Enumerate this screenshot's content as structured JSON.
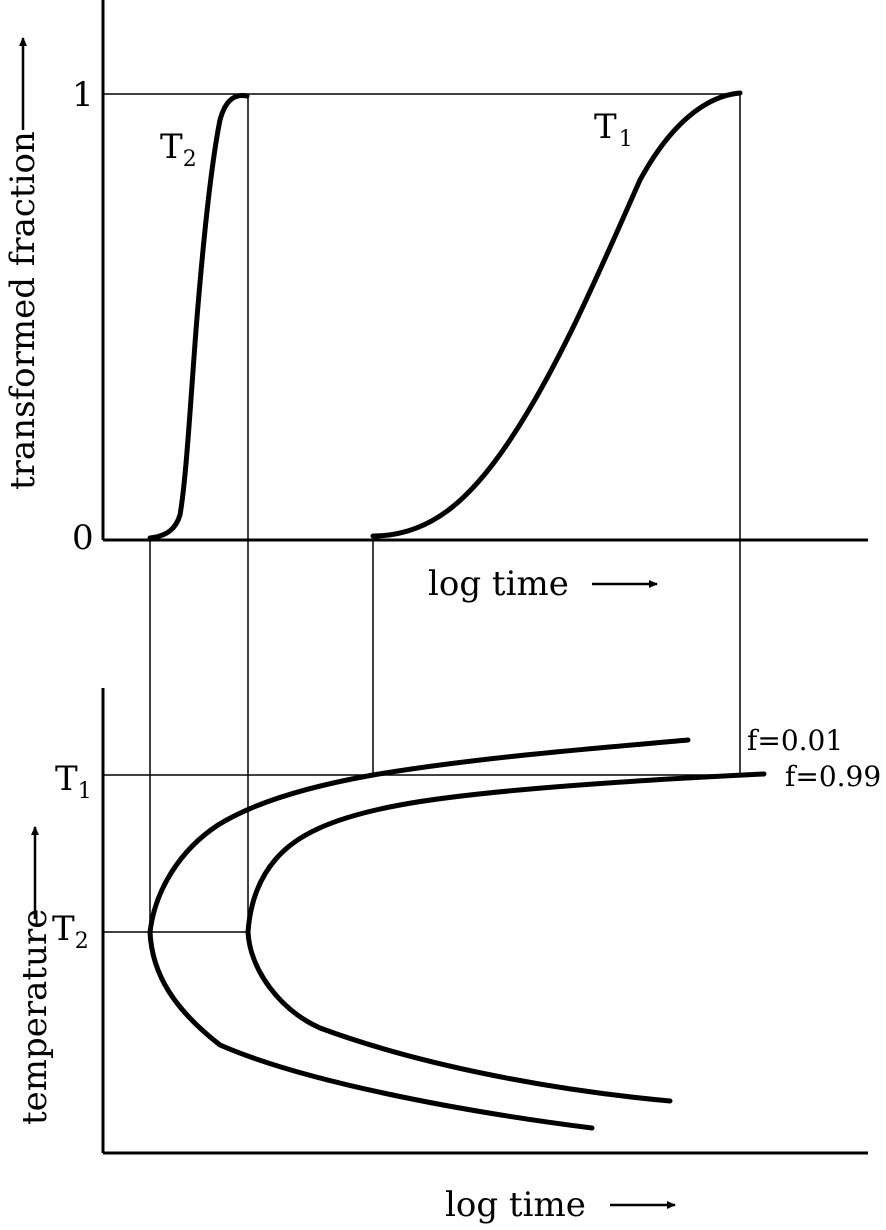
{
  "top_plot": {
    "y_axis_label": "transformed fraction",
    "x_axis_label": "log time",
    "y_tick_one": "1",
    "y_tick_zero": "0",
    "curve_T2": {
      "symbol": "T",
      "subscript": "2"
    },
    "curve_T1": {
      "symbol": "T",
      "subscript": "1"
    }
  },
  "bottom_plot": {
    "y_axis_label": "temperature",
    "x_axis_label": "log time",
    "level_T1": {
      "symbol": "T",
      "subscript": "1"
    },
    "level_T2": {
      "symbol": "T",
      "subscript": "2"
    },
    "curve_start_label": "f=0.01",
    "curve_finish_label": "f=0.99"
  }
}
